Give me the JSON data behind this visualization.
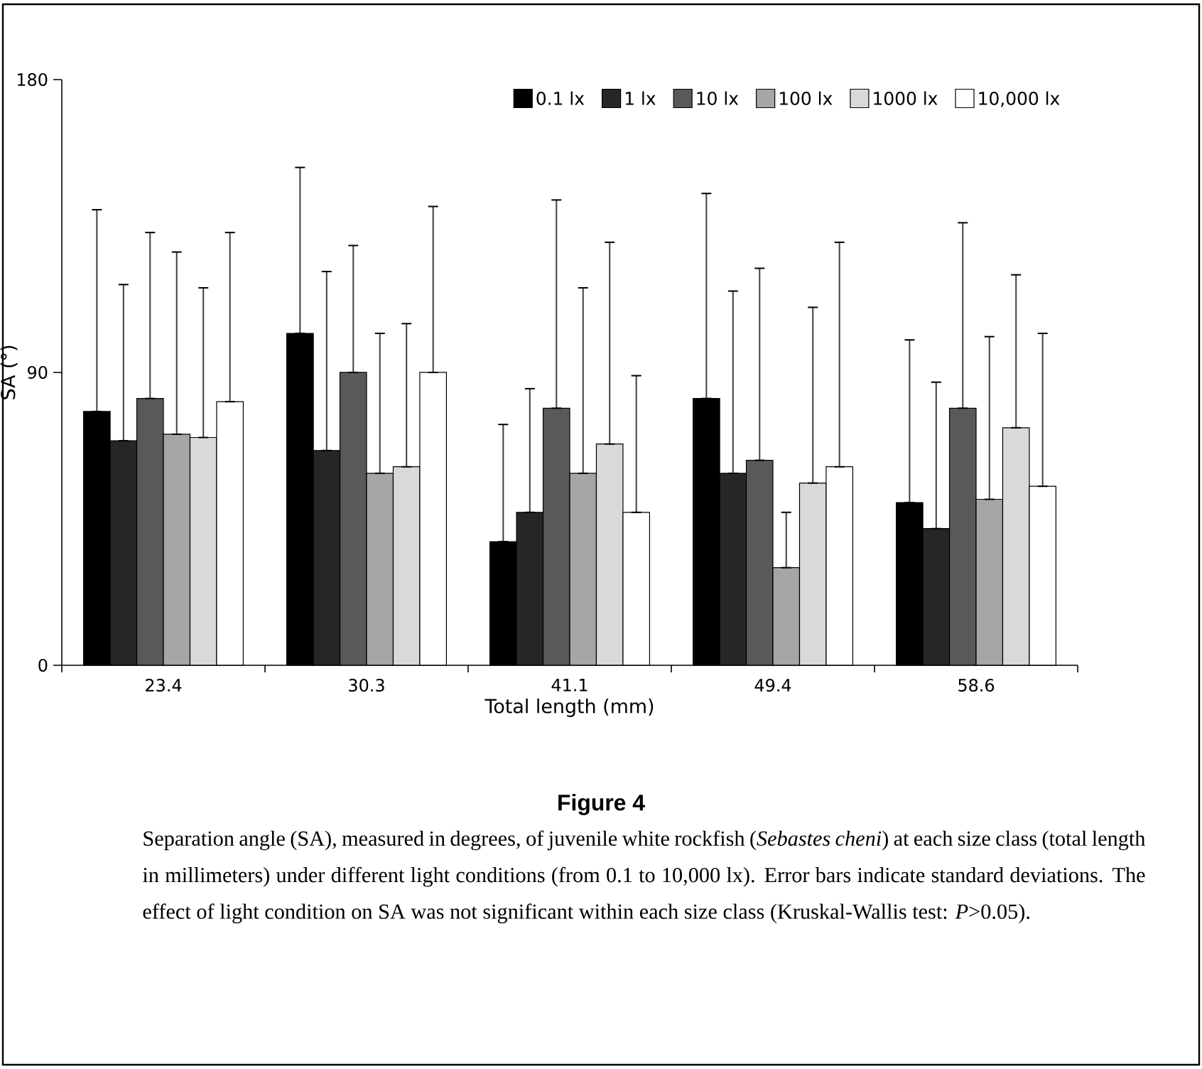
{
  "chart_data": {
    "type": "bar",
    "title": "Figure 4",
    "xlabel": "Total length (mm)",
    "ylabel": "SA (°)",
    "categories": [
      "23.4",
      "30.3",
      "41.1",
      "49.4",
      "58.6"
    ],
    "ylim": [
      0,
      180
    ],
    "yticks": [
      0,
      90,
      180
    ],
    "legend": "top right",
    "series": [
      {
        "name": "0.1 lx",
        "color": "#000000",
        "values": [
          78,
          102,
          38,
          82,
          50
        ],
        "errors": [
          [
            78,
            140
          ],
          [
            102,
            153
          ],
          [
            38,
            74
          ],
          [
            82,
            145
          ],
          [
            50,
            100
          ]
        ]
      },
      {
        "name": "1 lx",
        "color": "#262626",
        "values": [
          69,
          66,
          47,
          59,
          42
        ],
        "errors": [
          [
            69,
            117
          ],
          [
            66,
            121
          ],
          [
            47,
            85
          ],
          [
            59,
            115
          ],
          [
            42,
            87
          ]
        ]
      },
      {
        "name": "10 lx",
        "color": "#595959",
        "values": [
          82,
          90,
          79,
          63,
          79
        ],
        "errors": [
          [
            82,
            133
          ],
          [
            90,
            129
          ],
          [
            79,
            143
          ],
          [
            63,
            122
          ],
          [
            79,
            136
          ]
        ]
      },
      {
        "name": "100 lx",
        "color": "#a6a6a6",
        "values": [
          71,
          59,
          59,
          30,
          51
        ],
        "errors": [
          [
            71,
            127
          ],
          [
            59,
            102
          ],
          [
            59,
            116
          ],
          [
            30,
            47
          ],
          [
            51,
            101
          ]
        ]
      },
      {
        "name": "1000 lx",
        "color": "#d9d9d9",
        "values": [
          70,
          61,
          68,
          56,
          73
        ],
        "errors": [
          [
            70,
            116
          ],
          [
            61,
            105
          ],
          [
            68,
            130
          ],
          [
            56,
            110
          ],
          [
            73,
            120
          ]
        ]
      },
      {
        "name": "10,000 lx",
        "color": "#ffffff",
        "values": [
          81,
          90,
          47,
          61,
          55
        ],
        "errors": [
          [
            81,
            133
          ],
          [
            90,
            141
          ],
          [
            47,
            89
          ],
          [
            61,
            130
          ],
          [
            55,
            102
          ]
        ]
      }
    ],
    "annotations": [
      "Separation angle (SA), measured in degrees, of juvenile white rockfish (*Sebastes cheni*) at each size class (total length in millimeters) under different light conditions (from 0.1 to 10,000 lx). Error bars indicate standard deviations. The effect of light condition on SA was not significant within each size class (Kruskal-Wallis test: *P*>0.05)."
    ]
  }
}
